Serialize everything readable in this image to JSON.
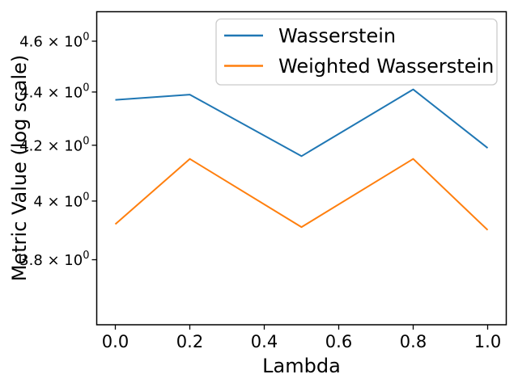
{
  "figure": {
    "background": "#ffffff"
  },
  "chart_data": {
    "type": "line",
    "title": "",
    "xlabel": "Lambda",
    "ylabel": "Metric Value (log scale)",
    "x": [
      0.0,
      0.2,
      0.5,
      0.8,
      1.0
    ],
    "series": [
      {
        "name": "Wasserstein",
        "color": "#1f77b4",
        "values": [
          4.37,
          4.39,
          4.16,
          4.41,
          4.19
        ]
      },
      {
        "name": "Weighted Wasserstein",
        "color": "#ff7f0e",
        "values": [
          3.92,
          4.15,
          3.91,
          4.15,
          3.9
        ]
      }
    ],
    "x_ticks": {
      "values": [
        0.0,
        0.2,
        0.4,
        0.6,
        0.8,
        1.0
      ],
      "labels": [
        "0.0",
        "0.2",
        "0.4",
        "0.6",
        "0.8",
        "1.0"
      ]
    },
    "y_ticks": {
      "values": [
        4.6,
        4.4,
        4.2,
        4.0,
        3.8
      ],
      "labels_main": [
        "4.6 × 10",
        "4.4 × 10",
        "4.2 × 10",
        "4 × 10",
        "3.8 × 10"
      ],
      "labels_exp": [
        "0",
        "0",
        "0",
        "0",
        "0"
      ]
    },
    "xlim": [
      -0.05,
      1.05
    ],
    "ylim": [
      3.59,
      4.72
    ],
    "y_scale": "log",
    "grid": false,
    "legend_position": "upper right",
    "axis_color": "#000000"
  }
}
